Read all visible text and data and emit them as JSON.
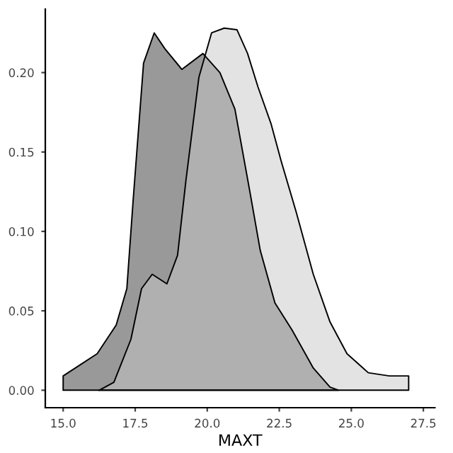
{
  "chart_data": {
    "type": "area",
    "xlabel": "MAXT",
    "series": [
      {
        "color": "#999999",
        "x": [
          15.0,
          16.18,
          16.84,
          17.21,
          17.43,
          17.79,
          18.16,
          18.53,
          19.12,
          19.85,
          20.44,
          20.96,
          21.47,
          21.84,
          22.35,
          22.94,
          23.68,
          24.26,
          24.56
        ],
        "values": [
          0.009,
          0.023,
          0.041,
          0.064,
          0.12,
          0.206,
          0.225,
          0.215,
          0.202,
          0.212,
          0.2,
          0.177,
          0.126,
          0.088,
          0.055,
          0.038,
          0.014,
          0.002,
          0.0
        ]
      },
      {
        "color": "#c7c7c7",
        "x": [
          16.25,
          16.76,
          17.35,
          17.72,
          18.09,
          18.6,
          18.97,
          19.26,
          19.71,
          20.15,
          20.59,
          21.03,
          21.4,
          21.76,
          22.21,
          22.57,
          23.09,
          23.68,
          24.26,
          24.85,
          25.59,
          26.32,
          26.99
        ],
        "values": [
          0.0,
          0.005,
          0.032,
          0.064,
          0.073,
          0.067,
          0.085,
          0.132,
          0.197,
          0.225,
          0.228,
          0.227,
          0.212,
          0.191,
          0.168,
          0.144,
          0.112,
          0.073,
          0.043,
          0.023,
          0.011,
          0.009,
          0.009
        ]
      }
    ],
    "xlim": [
      14.38,
      27.9
    ],
    "xticks": [
      {
        "value": 15,
        "label": "15.0"
      },
      {
        "value": 17.5,
        "label": "17.5"
      },
      {
        "value": 20,
        "label": "20.0"
      },
      {
        "value": 22.5,
        "label": "22.5"
      },
      {
        "value": 25,
        "label": "25.0"
      },
      {
        "value": 27.5,
        "label": "27.5"
      }
    ],
    "ylim": [
      -0.011,
      0.24
    ],
    "yticks": [
      {
        "value": 0,
        "label": "0.00"
      },
      {
        "value": 0.05,
        "label": "0.05"
      },
      {
        "value": 0.1,
        "label": "0.10"
      },
      {
        "value": 0.15,
        "label": "0.15"
      },
      {
        "value": 0.2,
        "label": "0.20"
      }
    ],
    "grid": false
  }
}
